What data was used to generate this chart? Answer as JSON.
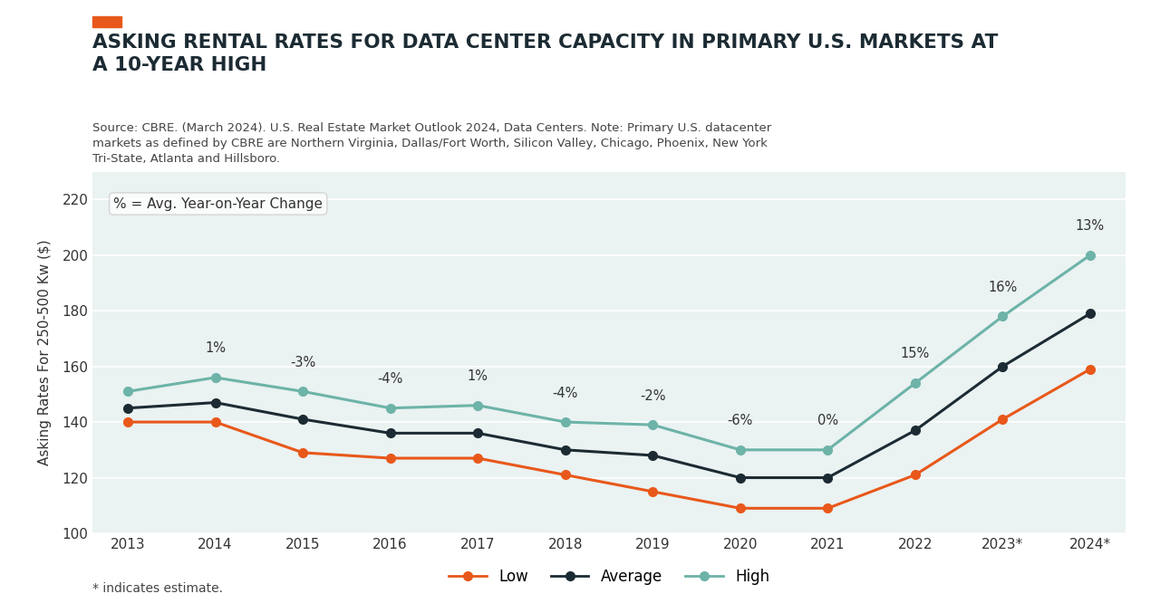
{
  "title": "ASKING RENTAL RATES FOR DATA CENTER CAPACITY IN PRIMARY U.S. MARKETS AT\nA 10-YEAR HIGH",
  "source_text": "Source: CBRE. (March 2024). U.S. Real Estate Market Outlook 2024, Data Centers. Note: Primary U.S. datacenter\nmarkets as defined by CBRE are Northern Virginia, Dallas/Fort Worth, Silicon Valley, Chicago, Phoenix, New York\nTri-State, Atlanta and Hillsboro.",
  "footnote": "* indicates estimate.",
  "ylabel": "Asking Rates For 250-500 Kw ($)",
  "annotation_note": "% = Avg. Year-on-Year Change",
  "years": [
    2013,
    2014,
    2015,
    2016,
    2017,
    2018,
    2019,
    2020,
    2021,
    2022,
    2023,
    2024
  ],
  "x_labels": [
    "2013",
    "2014",
    "2015",
    "2016",
    "2017",
    "2018",
    "2019",
    "2020",
    "2021",
    "2022",
    "2023*",
    "2024*"
  ],
  "low": [
    140,
    140,
    129,
    127,
    127,
    121,
    115,
    109,
    109,
    121,
    141,
    159
  ],
  "average": [
    145,
    147,
    141,
    136,
    136,
    130,
    128,
    120,
    120,
    137,
    160,
    179
  ],
  "high": [
    151,
    156,
    151,
    145,
    146,
    140,
    139,
    130,
    130,
    154,
    178,
    200
  ],
  "pct_labels": [
    "1%",
    "-3%",
    "-4%",
    "1%",
    "-4%",
    "-2%",
    "-6%",
    "0%",
    "15%",
    "16%",
    "13%"
  ],
  "pct_label_years_idx": [
    1,
    2,
    3,
    4,
    5,
    6,
    7,
    8,
    9,
    10,
    11
  ],
  "pct_label_values": [
    156,
    151,
    145,
    146,
    140,
    139,
    130,
    130,
    154,
    178,
    200
  ],
  "pct_offsets": [
    8,
    8,
    8,
    8,
    8,
    8,
    8,
    8,
    8,
    8,
    8
  ],
  "color_low": "#E8581A",
  "color_average": "#1C2B33",
  "color_high": "#6DB3A8",
  "background_color": "#EAF2F2",
  "plot_bg_color": "#EAF2F2",
  "fig_bg_color": "#FFFFFF",
  "ylim": [
    100,
    230
  ],
  "yticks": [
    100,
    120,
    140,
    160,
    180,
    200,
    220
  ],
  "accent_color": "#E8581A",
  "title_color": "#1C2B33",
  "grid_color": "#FFFFFF"
}
